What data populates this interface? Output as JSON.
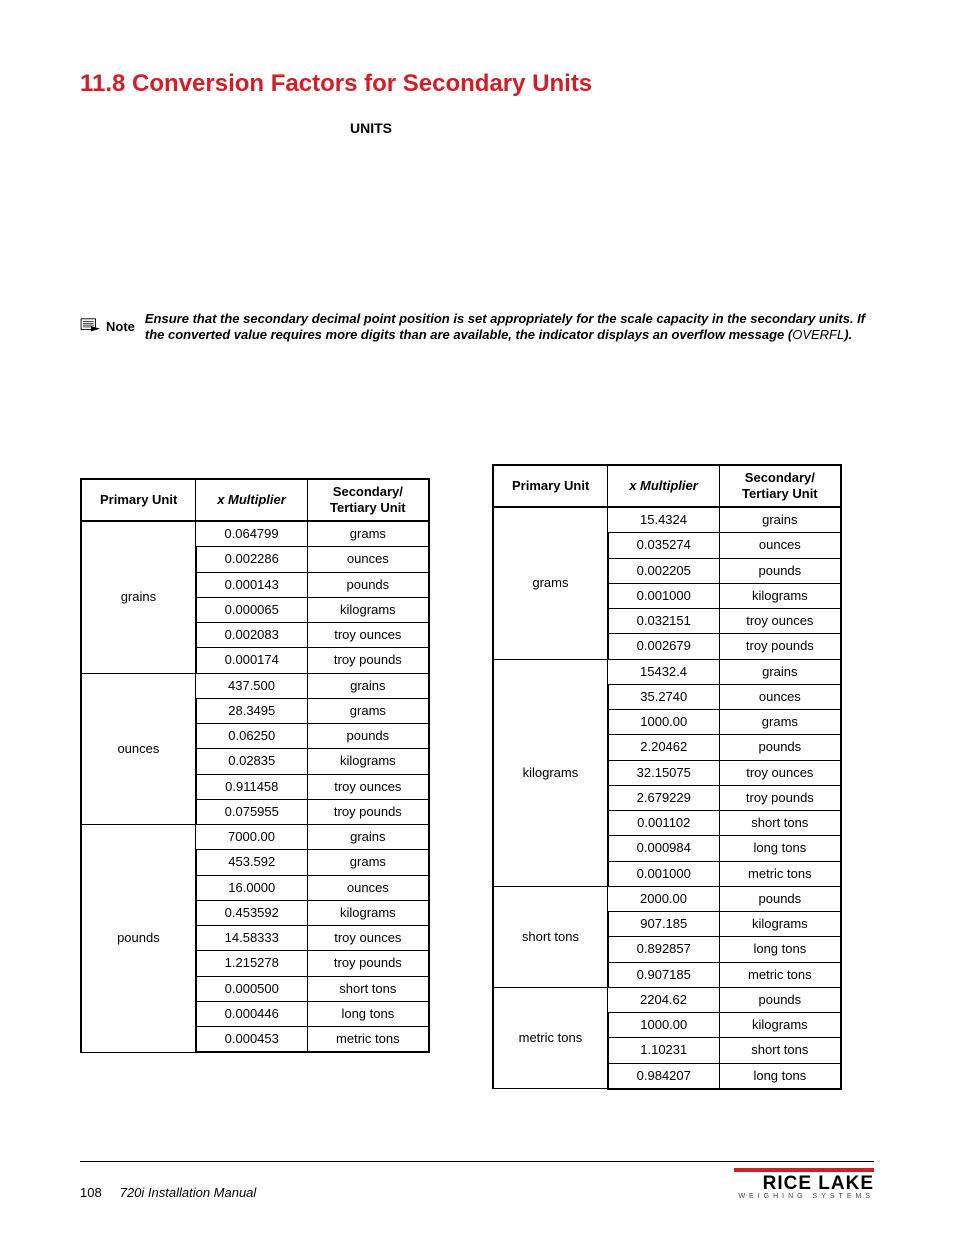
{
  "heading": "11.8   Conversion Factors for Secondary Units",
  "units_label": "UNITS",
  "note": {
    "label": "Note",
    "body_prefix": "Ensure that the secondary decimal point position is set appropriately for the scale capacity in the secondary units. If the converted value requires more digits than are available, the indicator displays an overflow message (",
    "overfl": "OVERFL",
    "body_suffix": ")."
  },
  "columns": {
    "primary": "Primary Unit",
    "multiplier": "x Multiplier",
    "secondary": "Secondary/\nTertiary Unit"
  },
  "left_table": {
    "groups": [
      {
        "primary": "grains",
        "rows": [
          {
            "m": "0.064799",
            "u": "grams"
          },
          {
            "m": "0.002286",
            "u": "ounces"
          },
          {
            "m": "0.000143",
            "u": "pounds"
          },
          {
            "m": "0.000065",
            "u": "kilograms"
          },
          {
            "m": "0.002083",
            "u": "troy ounces"
          },
          {
            "m": "0.000174",
            "u": "troy pounds"
          }
        ]
      },
      {
        "primary": "ounces",
        "rows": [
          {
            "m": "437.500",
            "u": "grains"
          },
          {
            "m": "28.3495",
            "u": "grams"
          },
          {
            "m": "0.06250",
            "u": "pounds"
          },
          {
            "m": "0.02835",
            "u": "kilograms"
          },
          {
            "m": "0.911458",
            "u": "troy ounces"
          },
          {
            "m": "0.075955",
            "u": "troy pounds"
          }
        ]
      },
      {
        "primary": "pounds",
        "rows": [
          {
            "m": "7000.00",
            "u": "grains"
          },
          {
            "m": "453.592",
            "u": "grams"
          },
          {
            "m": "16.0000",
            "u": "ounces"
          },
          {
            "m": "0.453592",
            "u": "kilograms"
          },
          {
            "m": "14.58333",
            "u": "troy ounces"
          },
          {
            "m": "1.215278",
            "u": "troy pounds"
          },
          {
            "m": "0.000500",
            "u": "short tons"
          },
          {
            "m": "0.000446",
            "u": "long tons"
          },
          {
            "m": "0.000453",
            "u": "metric tons"
          }
        ]
      }
    ]
  },
  "right_table": {
    "groups": [
      {
        "primary": "grams",
        "rows": [
          {
            "m": "15.4324",
            "u": "grains"
          },
          {
            "m": "0.035274",
            "u": "ounces"
          },
          {
            "m": "0.002205",
            "u": "pounds"
          },
          {
            "m": "0.001000",
            "u": "kilograms"
          },
          {
            "m": "0.032151",
            "u": "troy ounces"
          },
          {
            "m": "0.002679",
            "u": "troy pounds"
          }
        ]
      },
      {
        "primary": "kilograms",
        "rows": [
          {
            "m": "15432.4",
            "u": "grains"
          },
          {
            "m": "35.2740",
            "u": "ounces"
          },
          {
            "m": "1000.00",
            "u": "grams"
          },
          {
            "m": "2.20462",
            "u": "pounds"
          },
          {
            "m": "32.15075",
            "u": "troy ounces"
          },
          {
            "m": "2.679229",
            "u": "troy pounds"
          },
          {
            "m": "0.001102",
            "u": "short tons"
          },
          {
            "m": "0.000984",
            "u": "long tons"
          },
          {
            "m": "0.001000",
            "u": "metric tons"
          }
        ]
      },
      {
        "primary": "short tons",
        "rows": [
          {
            "m": "2000.00",
            "u": "pounds"
          },
          {
            "m": "907.185",
            "u": "kilograms"
          },
          {
            "m": "0.892857",
            "u": "long tons"
          },
          {
            "m": "0.907185",
            "u": "metric tons"
          }
        ]
      },
      {
        "primary": "metric tons",
        "rows": [
          {
            "m": "2204.62",
            "u": "pounds"
          },
          {
            "m": "1000.00",
            "u": "kilograms"
          },
          {
            "m": "1.10231",
            "u": "short tons"
          },
          {
            "m": "0.984207",
            "u": "long tons"
          }
        ]
      }
    ]
  },
  "footer": {
    "page_number": "108",
    "manual_title": "720i Installation Manual",
    "brand_name": "RICE LAKE",
    "brand_sub": "WEIGHING SYSTEMS"
  },
  "colors": {
    "accent_red": "#cf1f27",
    "text": "#000000",
    "border": "#000000"
  }
}
